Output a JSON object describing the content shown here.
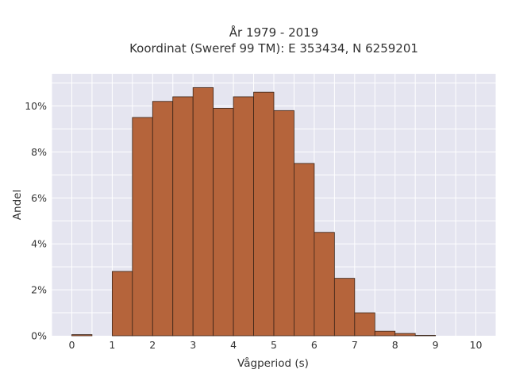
{
  "chart_data": {
    "type": "bar",
    "title_line1": "År 1979 - 2019",
    "title_line2": "Koordinat (Sweref 99 TM): E 353434, N 6259201",
    "xlabel": "Vågperiod (s)",
    "ylabel": "Andel",
    "xlim": [
      -0.5,
      10.5
    ],
    "ylim": [
      0,
      11.4
    ],
    "bin_width": 0.5,
    "x_ticks": [
      0,
      1,
      2,
      3,
      4,
      5,
      6,
      7,
      8,
      9,
      10
    ],
    "y_ticks": [
      0,
      2,
      4,
      6,
      8,
      10
    ],
    "y_tick_labels": [
      "0%",
      "2%",
      "4%",
      "6%",
      "8%",
      "10%"
    ],
    "grid": true,
    "colors": {
      "bar_fill": "#b5643b",
      "bar_stroke": "#3a2418",
      "plot_background": "#e5e5f0",
      "grid": "#ffffff"
    },
    "bins": [
      {
        "x0": 0.0,
        "value": 0.05
      },
      {
        "x0": 0.5,
        "value": 0.0
      },
      {
        "x0": 1.0,
        "value": 2.8
      },
      {
        "x0": 1.5,
        "value": 9.5
      },
      {
        "x0": 2.0,
        "value": 10.2
      },
      {
        "x0": 2.5,
        "value": 10.4
      },
      {
        "x0": 3.0,
        "value": 10.8
      },
      {
        "x0": 3.5,
        "value": 9.9
      },
      {
        "x0": 4.0,
        "value": 10.4
      },
      {
        "x0": 4.5,
        "value": 10.6
      },
      {
        "x0": 5.0,
        "value": 9.8
      },
      {
        "x0": 5.5,
        "value": 7.5
      },
      {
        "x0": 6.0,
        "value": 4.5
      },
      {
        "x0": 6.5,
        "value": 2.5
      },
      {
        "x0": 7.0,
        "value": 1.0
      },
      {
        "x0": 7.5,
        "value": 0.2
      },
      {
        "x0": 8.0,
        "value": 0.1
      },
      {
        "x0": 8.5,
        "value": 0.02
      },
      {
        "x0": 9.0,
        "value": 0.0
      },
      {
        "x0": 9.5,
        "value": 0.0
      }
    ]
  }
}
